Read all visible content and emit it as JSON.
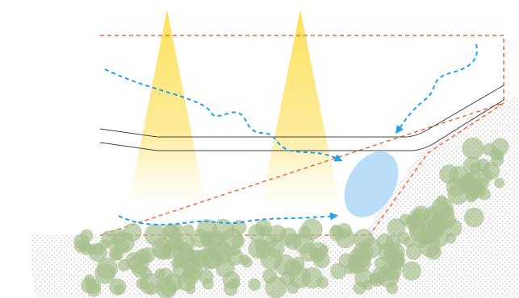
{
  "colors": {
    "background": "#ffffff",
    "boundary": "#ef6a3a",
    "light_beam": "#fde26a",
    "flow_arrow": "#1ea0ec",
    "flow_zone": "#b9dcf7",
    "gravel": "#a9bf8f",
    "soil_texture": "#d9d9d9",
    "surface_line": "#333333"
  },
  "icons": {
    "light_beams": "yellow-gradient-triangles",
    "flow_arrows": "blue-dashed-curved-arrows",
    "gravel": "green-circles",
    "soil": "grey-dot-pattern"
  }
}
